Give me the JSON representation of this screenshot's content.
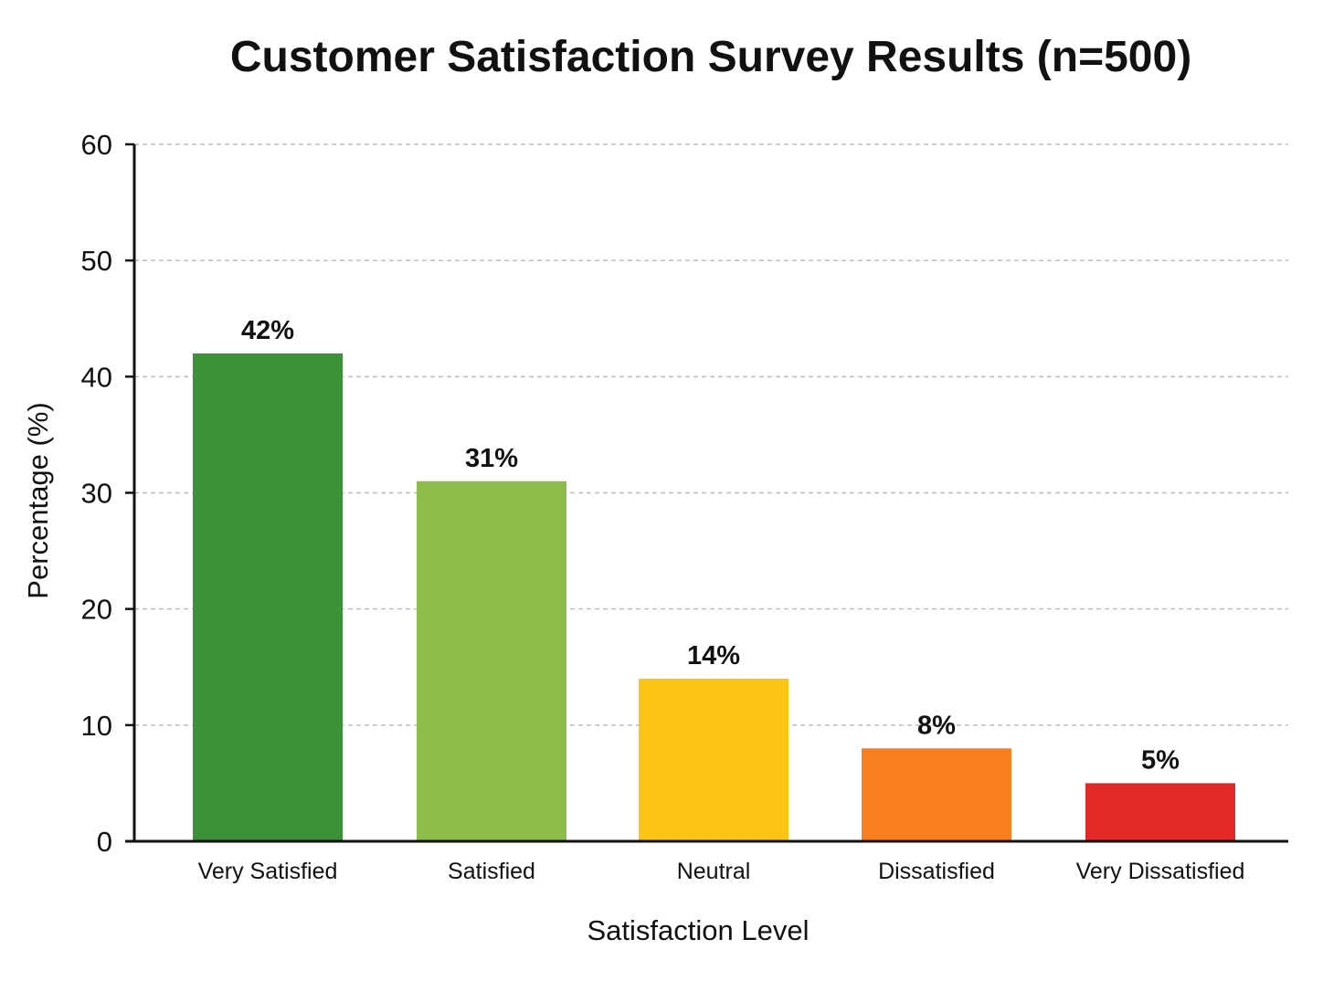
{
  "chart_data": {
    "type": "bar",
    "title": "Customer Satisfaction Survey Results (n=500)",
    "xlabel": "Satisfaction Level",
    "ylabel": "Percentage (%)",
    "ylim": [
      0,
      60
    ],
    "yticks": [
      0,
      10,
      20,
      30,
      40,
      50,
      60
    ],
    "grid": true,
    "categories": [
      "Very Satisfied",
      "Satisfied",
      "Neutral",
      "Dissatisfied",
      "Very Dissatisfied"
    ],
    "values": [
      42,
      31,
      14,
      8,
      5
    ],
    "data_labels": [
      "42%",
      "31%",
      "14%",
      "8%",
      "5%"
    ],
    "colors": [
      "#3d9138",
      "#8cbd4b",
      "#fcc514",
      "#f77f20",
      "#e12a27"
    ]
  }
}
